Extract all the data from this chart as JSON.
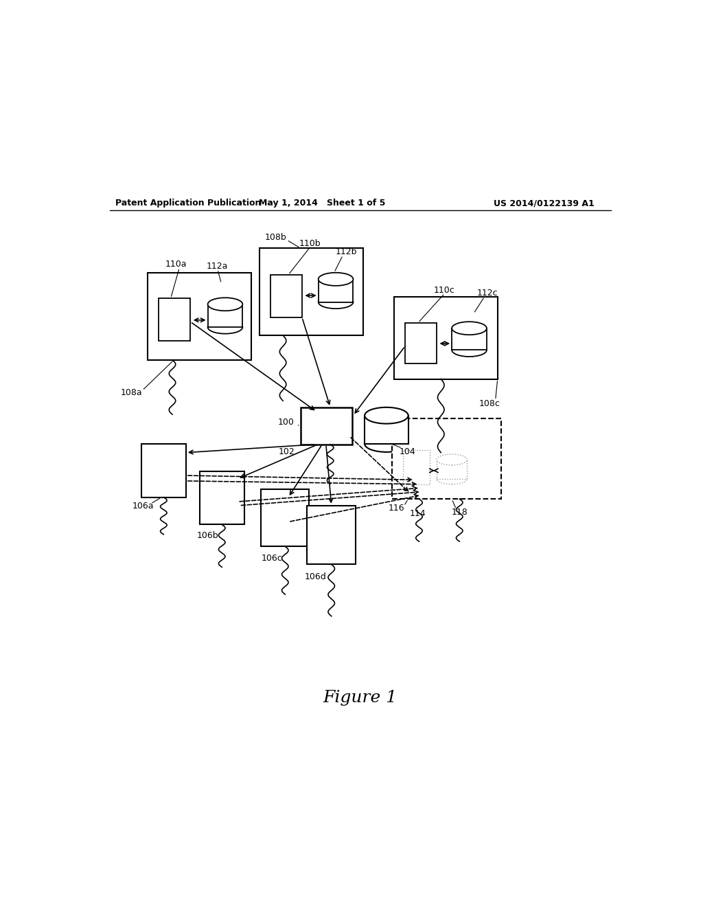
{
  "header_left": "Patent Application Publication",
  "header_middle": "May 1, 2014   Sheet 1 of 5",
  "header_right": "US 2014/0122139 A1",
  "figure_label": "Figure 1",
  "background_color": "#ffffff"
}
